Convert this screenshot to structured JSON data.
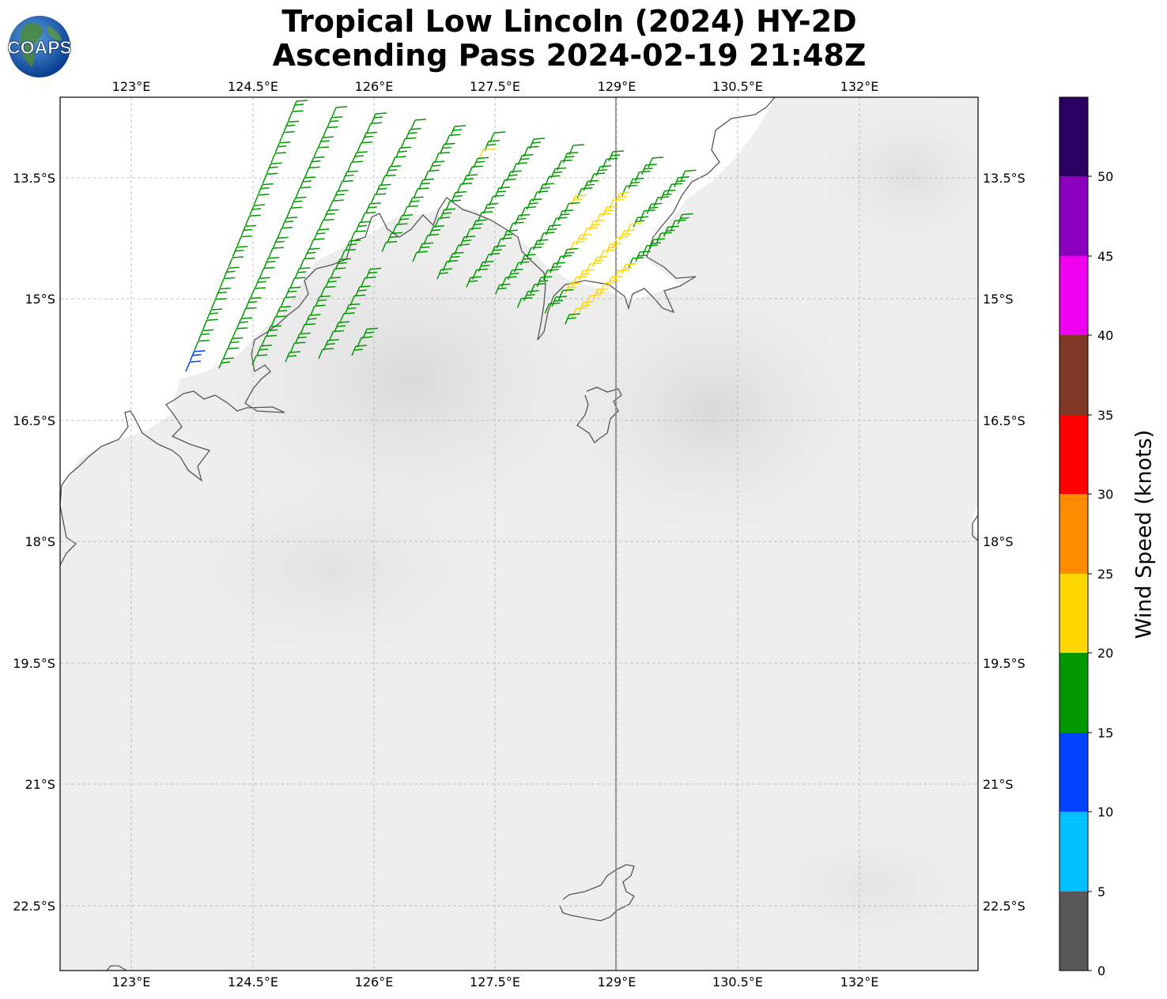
{
  "title": {
    "line1": "Tropical Low Lincoln (2024) HY-2D",
    "line2": "Ascending Pass 2024-02-19 21:48Z"
  },
  "logo": {
    "text": "COAPS"
  },
  "map": {
    "lon_range": [
      121.5,
      132.85
    ],
    "lat_range": [
      -12.5,
      -23.3
    ],
    "lon_ticks": [
      "123°E",
      "124.5°E",
      "126°E",
      "127.5°E",
      "129°E",
      "130.5°E",
      "132°E"
    ],
    "lat_ticks": [
      "13.5°S",
      "15°S",
      "16.5°S",
      "18°S",
      "19.5°S",
      "21°S",
      "22.5°S"
    ],
    "grid": true,
    "background": "grayscale satellite imagery (land)"
  },
  "colorbar": {
    "label": "Wind Speed (knots)",
    "ticks": [
      "0",
      "5",
      "10",
      "15",
      "20",
      "25",
      "30",
      "35",
      "40",
      "45",
      "50"
    ],
    "colors": [
      "#585858",
      "#00bfff",
      "#0040ff",
      "#009900",
      "#ffd700",
      "#ff8c00",
      "#ff0000",
      "#7f3826",
      "#ee00ee",
      "#8800bb",
      "#2a0060"
    ]
  }
}
